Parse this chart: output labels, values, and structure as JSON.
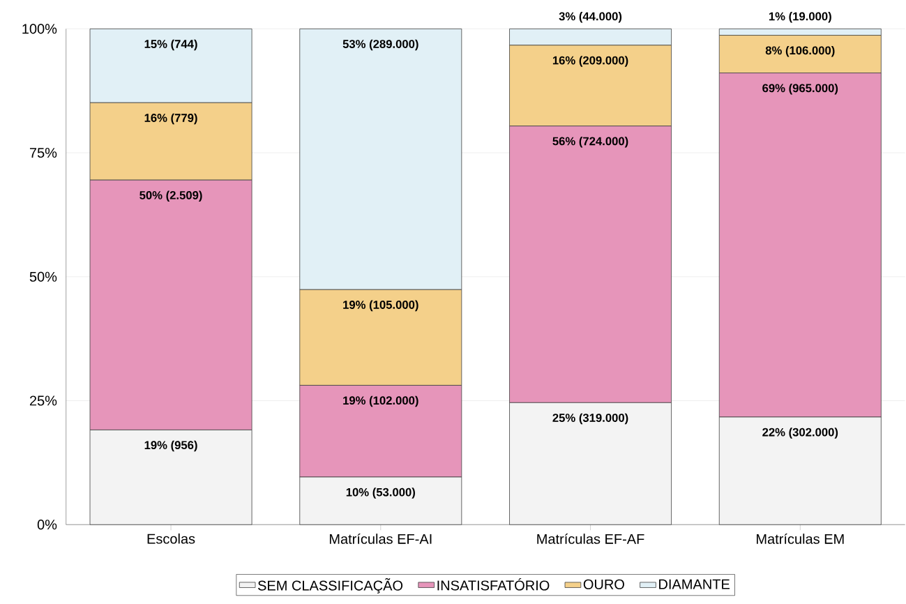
{
  "chart_data": {
    "type": "bar",
    "stacked": true,
    "categories": [
      "Escolas",
      "Matrículas EF-AI",
      "Matrículas EF-AF",
      "Matrículas EM"
    ],
    "series": [
      {
        "name": "SEM CLASSIFICAÇÃO",
        "color": "#f3f3f3",
        "values": [
          19.1,
          9.6,
          24.6,
          21.7
        ],
        "value_labels": [
          "19% (956)",
          "10% (53.000)",
          "25% (319.000)",
          "22% (302.000)"
        ]
      },
      {
        "name": "INSATISFATÓRIO",
        "color": "#e695ba",
        "values": [
          50.4,
          18.5,
          55.8,
          69.4
        ],
        "value_labels": [
          "50% (2.509)",
          "19% (102.000)",
          "56% (724.000)",
          "69% (965.000)"
        ]
      },
      {
        "name": "OURO",
        "color": "#f4d08a",
        "values": [
          15.6,
          19.3,
          16.3,
          7.6
        ],
        "value_labels": [
          "16% (779)",
          "19% (105.000)",
          "16% (209.000)",
          "8% (106.000)"
        ]
      },
      {
        "name": "DIAMANTE",
        "color": "#e1f0f6",
        "values": [
          14.9,
          52.6,
          3.3,
          1.3
        ],
        "value_labels": [
          "15% (744)",
          "53% (289.000)",
          "3% (44.000)",
          "1% (19.000)"
        ]
      }
    ],
    "ylim": [
      0,
      100
    ],
    "yticks": [
      {
        "value": 0,
        "label": "0%"
      },
      {
        "value": 25,
        "label": "25%"
      },
      {
        "value": 50,
        "label": "50%"
      },
      {
        "value": 75,
        "label": "75%"
      },
      {
        "value": 100,
        "label": "100%"
      }
    ],
    "grid": "y",
    "legend": "bottom"
  }
}
